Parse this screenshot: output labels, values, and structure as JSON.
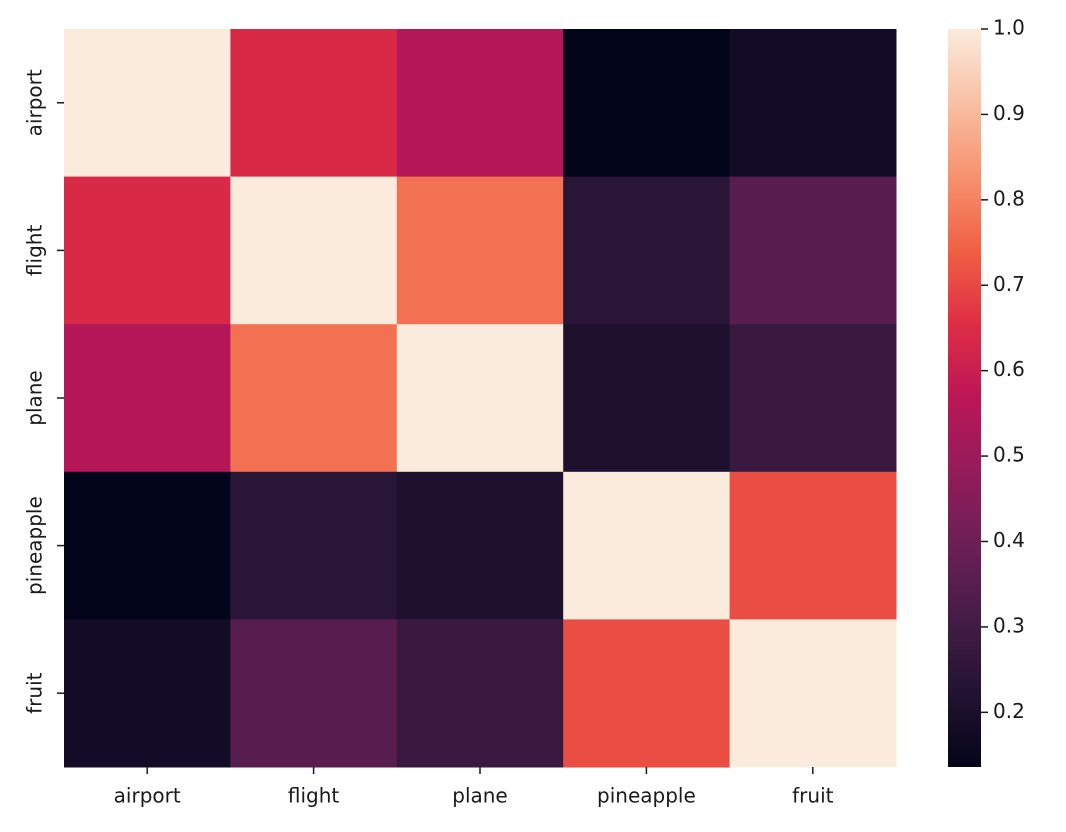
{
  "chart_data": {
    "type": "heatmap",
    "categories": [
      "airport",
      "flight",
      "plane",
      "pineapple",
      "fruit"
    ],
    "values": [
      [
        1.0,
        0.64,
        0.55,
        0.136,
        0.18
      ],
      [
        0.64,
        1.0,
        0.77,
        0.24,
        0.35
      ],
      [
        0.55,
        0.77,
        1.0,
        0.21,
        0.28
      ],
      [
        0.136,
        0.24,
        0.21,
        1.0,
        0.71
      ],
      [
        0.18,
        0.35,
        0.28,
        0.71,
        1.0
      ]
    ],
    "clim": [
      0.136,
      1.0
    ],
    "cticks": [
      0.2,
      0.3,
      0.4,
      0.5,
      0.6,
      0.7,
      0.8,
      0.9,
      {
        "value": 1.0,
        "label": "1.0"
      }
    ],
    "colormap": [
      "#03051a",
      "#221331",
      "#451c47",
      "#6b1f56",
      "#931c5a",
      "#bc1656",
      "#de2e44",
      "#f06043",
      "#f6926e",
      "#f8c0a3",
      "#faebdd"
    ]
  }
}
